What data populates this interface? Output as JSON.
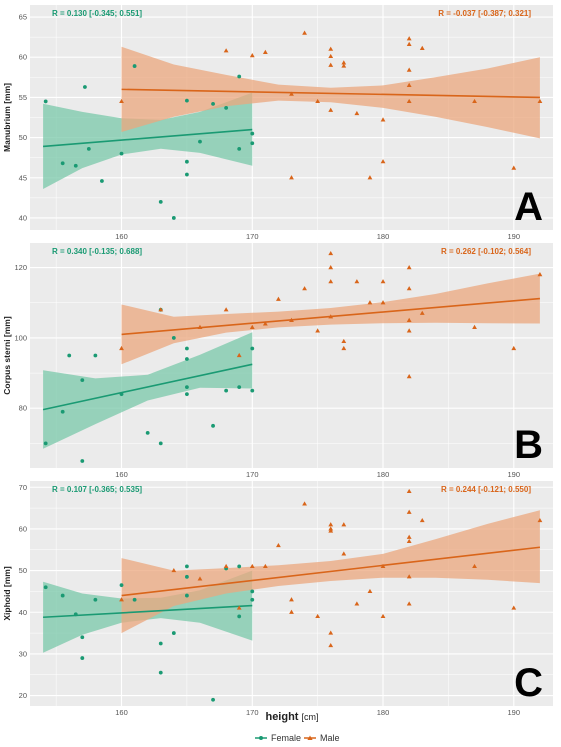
{
  "figure": {
    "xlabel": "height",
    "xunit": "[cm]",
    "legend": [
      {
        "name": "Female",
        "color": "#1a9a73"
      },
      {
        "name": "Male",
        "color": "#d9651a"
      }
    ]
  },
  "colors": {
    "female": "#1a9a73",
    "female_band": "#79c8a9",
    "male": "#d9651a",
    "male_band": "#eba77d",
    "panel_bg": "#ebebeb",
    "grid": "#ffffff"
  },
  "chart_data": [
    {
      "type": "scatter",
      "panel": "A",
      "ylabel": "Manubrium [mm]",
      "xlim": [
        153,
        193
      ],
      "ylim": [
        38.5,
        66.5
      ],
      "xticks": [
        160,
        170,
        180,
        190
      ],
      "yticks": [
        40,
        45,
        50,
        55,
        60,
        65
      ],
      "annotations": {
        "female": "R = 0.130 [-0.345; 0.551]",
        "male": "R = -0.037 [-0.387; 0.321]"
      },
      "series": [
        {
          "name": "Female",
          "marker": "circle",
          "points": [
            [
              154.2,
              54.5
            ],
            [
              155.5,
              46.8
            ],
            [
              156.5,
              46.5
            ],
            [
              157.2,
              56.3
            ],
            [
              157.5,
              48.6
            ],
            [
              158.5,
              44.6
            ],
            [
              160,
              48
            ],
            [
              161,
              58.9
            ],
            [
              163,
              42
            ],
            [
              164,
              40
            ],
            [
              165,
              47
            ],
            [
              165,
              45.4
            ],
            [
              165,
              54.6
            ],
            [
              166,
              49.5
            ],
            [
              167,
              54.2
            ],
            [
              168,
              53.7
            ],
            [
              169,
              48.6
            ],
            [
              169,
              57.6
            ],
            [
              170,
              49.3
            ],
            [
              170,
              50.5
            ]
          ],
          "fit": {
            "x": [
              154,
              170
            ],
            "y": [
              48.9,
              51.0
            ]
          },
          "band": {
            "x": [
              154,
              157,
              160,
              163,
              166,
              170
            ],
            "lower": [
              43.6,
              46.2,
              47.9,
              48.6,
              48.1,
              46.5
            ],
            "upper": [
              54.2,
              53.2,
              52.4,
              52.2,
              53.2,
              55.6
            ]
          }
        },
        {
          "name": "Male",
          "marker": "triangle",
          "points": [
            [
              160,
              54.5
            ],
            [
              168,
              60.8
            ],
            [
              170,
              60.2
            ],
            [
              171,
              60.6
            ],
            [
              173,
              45
            ],
            [
              173,
              55.4
            ],
            [
              174,
              63
            ],
            [
              175,
              54.5
            ],
            [
              176,
              61
            ],
            [
              176,
              60.1
            ],
            [
              176,
              59
            ],
            [
              176,
              53.4
            ],
            [
              177,
              58.9
            ],
            [
              177,
              59.3
            ],
            [
              178,
              53
            ],
            [
              179,
              45
            ],
            [
              180,
              52.2
            ],
            [
              180,
              47
            ],
            [
              182,
              62.3
            ],
            [
              182,
              61.6
            ],
            [
              182,
              58.4
            ],
            [
              182,
              56.5
            ],
            [
              182,
              54.5
            ],
            [
              183,
              61.1
            ],
            [
              187,
              54.5
            ],
            [
              190,
              46.2
            ],
            [
              192,
              54.5
            ]
          ],
          "fit": {
            "x": [
              160,
              192
            ],
            "y": [
              56.0,
              55.0
            ]
          },
          "band": {
            "x": [
              160,
              164,
              168,
              172,
              176,
              180,
              184,
              188,
              192
            ],
            "lower": [
              50.7,
              52.6,
              53.9,
              54.6,
              54.4,
              53.7,
              52.6,
              51.3,
              49.9
            ],
            "upper": [
              61.3,
              59.1,
              57.8,
              56.6,
              56.2,
              56.5,
              57.5,
              58.6,
              60.0
            ]
          }
        }
      ]
    },
    {
      "type": "scatter",
      "panel": "B",
      "ylabel": "Corpus sterni [mm]",
      "xlim": [
        153,
        193
      ],
      "ylim": [
        63,
        127
      ],
      "xticks": [
        160,
        170,
        180,
        190
      ],
      "yticks": [
        80,
        100,
        120
      ],
      "annotations": {
        "female": "R = 0.340 [-0.135; 0.688]",
        "male": "R = 0.262 [-0.102; 0.564]"
      },
      "series": [
        {
          "name": "Female",
          "marker": "circle",
          "points": [
            [
              154.2,
              70
            ],
            [
              155.5,
              79
            ],
            [
              156,
              95
            ],
            [
              157,
              88
            ],
            [
              157,
              65
            ],
            [
              158,
              95
            ],
            [
              160,
              84
            ],
            [
              162,
              73
            ],
            [
              163,
              108
            ],
            [
              163,
              70
            ],
            [
              164,
              100
            ],
            [
              165,
              94
            ],
            [
              165,
              84
            ],
            [
              165,
              86
            ],
            [
              165,
              97
            ],
            [
              167,
              75
            ],
            [
              168,
              85
            ],
            [
              169,
              86
            ],
            [
              170,
              85
            ],
            [
              170,
              97
            ]
          ],
          "fit": {
            "x": [
              154,
              170
            ],
            "y": [
              79.6,
              92.5
            ]
          },
          "band": {
            "x": [
              154,
              158,
              162,
              166,
              170
            ],
            "lower": [
              68.5,
              75.5,
              82.2,
              85.8,
              85.6
            ],
            "upper": [
              90.8,
              88.5,
              89.5,
              95.2,
              101.6
            ]
          }
        },
        {
          "name": "Male",
          "marker": "triangle",
          "points": [
            [
              160,
              97
            ],
            [
              163,
              108
            ],
            [
              166,
              103
            ],
            [
              168,
              108
            ],
            [
              169,
              95
            ],
            [
              170,
              103
            ],
            [
              171,
              104
            ],
            [
              172,
              111
            ],
            [
              173,
              105
            ],
            [
              174,
              114
            ],
            [
              175,
              102
            ],
            [
              176,
              106
            ],
            [
              176,
              120
            ],
            [
              176,
              124
            ],
            [
              176,
              116
            ],
            [
              177,
              99
            ],
            [
              177,
              97
            ],
            [
              178,
              116
            ],
            [
              179,
              110
            ],
            [
              180,
              110
            ],
            [
              180,
              116
            ],
            [
              182,
              120
            ],
            [
              182,
              114
            ],
            [
              182,
              105
            ],
            [
              182,
              102
            ],
            [
              182,
              89
            ],
            [
              183,
              107
            ],
            [
              187,
              103
            ],
            [
              190,
              97
            ],
            [
              192,
              118
            ]
          ],
          "fit": {
            "x": [
              160,
              192
            ],
            "y": [
              101.0,
              111.2
            ]
          },
          "band": {
            "x": [
              160,
              164,
              168,
              172,
              176,
              180,
              184,
              188,
              192
            ],
            "lower": [
              92.5,
              98.5,
              101.5,
              103.0,
              103.8,
              104.2,
              104.3,
              104.2,
              104.1
            ],
            "upper": [
              109.5,
              106.0,
              106.8,
              107.5,
              108.5,
              110.2,
              112.5,
              115.5,
              118.3
            ]
          }
        }
      ]
    },
    {
      "type": "scatter",
      "panel": "C",
      "ylabel": "Xiphoid [mm]",
      "xlim": [
        153,
        193
      ],
      "ylim": [
        17.5,
        71.5
      ],
      "xticks": [
        160,
        170,
        180,
        190
      ],
      "yticks": [
        20,
        30,
        40,
        50,
        60,
        70
      ],
      "annotations": {
        "female": "R = 0.107 [-0.365; 0.535]",
        "male": "R = 0.244 [-0.121; 0.550]"
      },
      "series": [
        {
          "name": "Female",
          "marker": "circle",
          "points": [
            [
              154.2,
              46
            ],
            [
              155.5,
              44
            ],
            [
              156.5,
              39.5
            ],
            [
              157,
              34
            ],
            [
              157,
              29
            ],
            [
              158,
              43
            ],
            [
              160,
              46.5
            ],
            [
              161,
              43
            ],
            [
              163,
              32.5
            ],
            [
              163,
              25.5
            ],
            [
              164,
              35
            ],
            [
              165,
              44
            ],
            [
              165,
              48.5
            ],
            [
              165,
              51
            ],
            [
              167,
              19
            ],
            [
              168,
              50.5
            ],
            [
              169,
              51
            ],
            [
              169,
              39
            ],
            [
              170,
              43
            ],
            [
              170,
              45
            ]
          ],
          "fit": {
            "x": [
              154,
              170
            ],
            "y": [
              38.8,
              41.6
            ]
          },
          "band": {
            "x": [
              154,
              157,
              160,
              163,
              166,
              170
            ],
            "lower": [
              30.3,
              34.6,
              37.5,
              38.6,
              37.5,
              33.2
            ],
            "upper": [
              47.3,
              44.5,
              43.3,
              43.5,
              45.3,
              50.0
            ]
          }
        },
        {
          "name": "Male",
          "marker": "triangle",
          "points": [
            [
              160,
              43
            ],
            [
              164,
              50
            ],
            [
              166,
              48
            ],
            [
              168,
              51
            ],
            [
              169,
              41
            ],
            [
              170,
              51
            ],
            [
              171,
              51
            ],
            [
              172,
              56
            ],
            [
              173,
              40
            ],
            [
              173,
              43
            ],
            [
              174,
              66
            ],
            [
              175,
              39
            ],
            [
              176,
              60
            ],
            [
              176,
              59.5
            ],
            [
              176,
              61
            ],
            [
              176,
              32
            ],
            [
              176,
              35
            ],
            [
              177,
              54
            ],
            [
              177,
              61
            ],
            [
              178,
              42
            ],
            [
              179,
              45
            ],
            [
              180,
              39
            ],
            [
              180,
              51
            ],
            [
              182,
              69
            ],
            [
              182,
              64
            ],
            [
              182,
              58
            ],
            [
              182,
              57
            ],
            [
              182,
              42
            ],
            [
              182,
              48.5
            ],
            [
              183,
              62
            ],
            [
              187,
              51
            ],
            [
              190,
              41
            ],
            [
              192,
              62
            ]
          ],
          "fit": {
            "x": [
              160,
              192
            ],
            "y": [
              44.0,
              55.6
            ]
          },
          "band": {
            "x": [
              160,
              164,
              168,
              172,
              176,
              180,
              184,
              188,
              192
            ],
            "lower": [
              35.0,
              41.5,
              44.5,
              46.3,
              47.5,
              48.3,
              48.3,
              47.8,
              47.0
            ],
            "upper": [
              53.0,
              50.0,
              50.6,
              51.3,
              52.3,
              54.0,
              57.5,
              61.2,
              64.5
            ]
          }
        }
      ]
    }
  ]
}
